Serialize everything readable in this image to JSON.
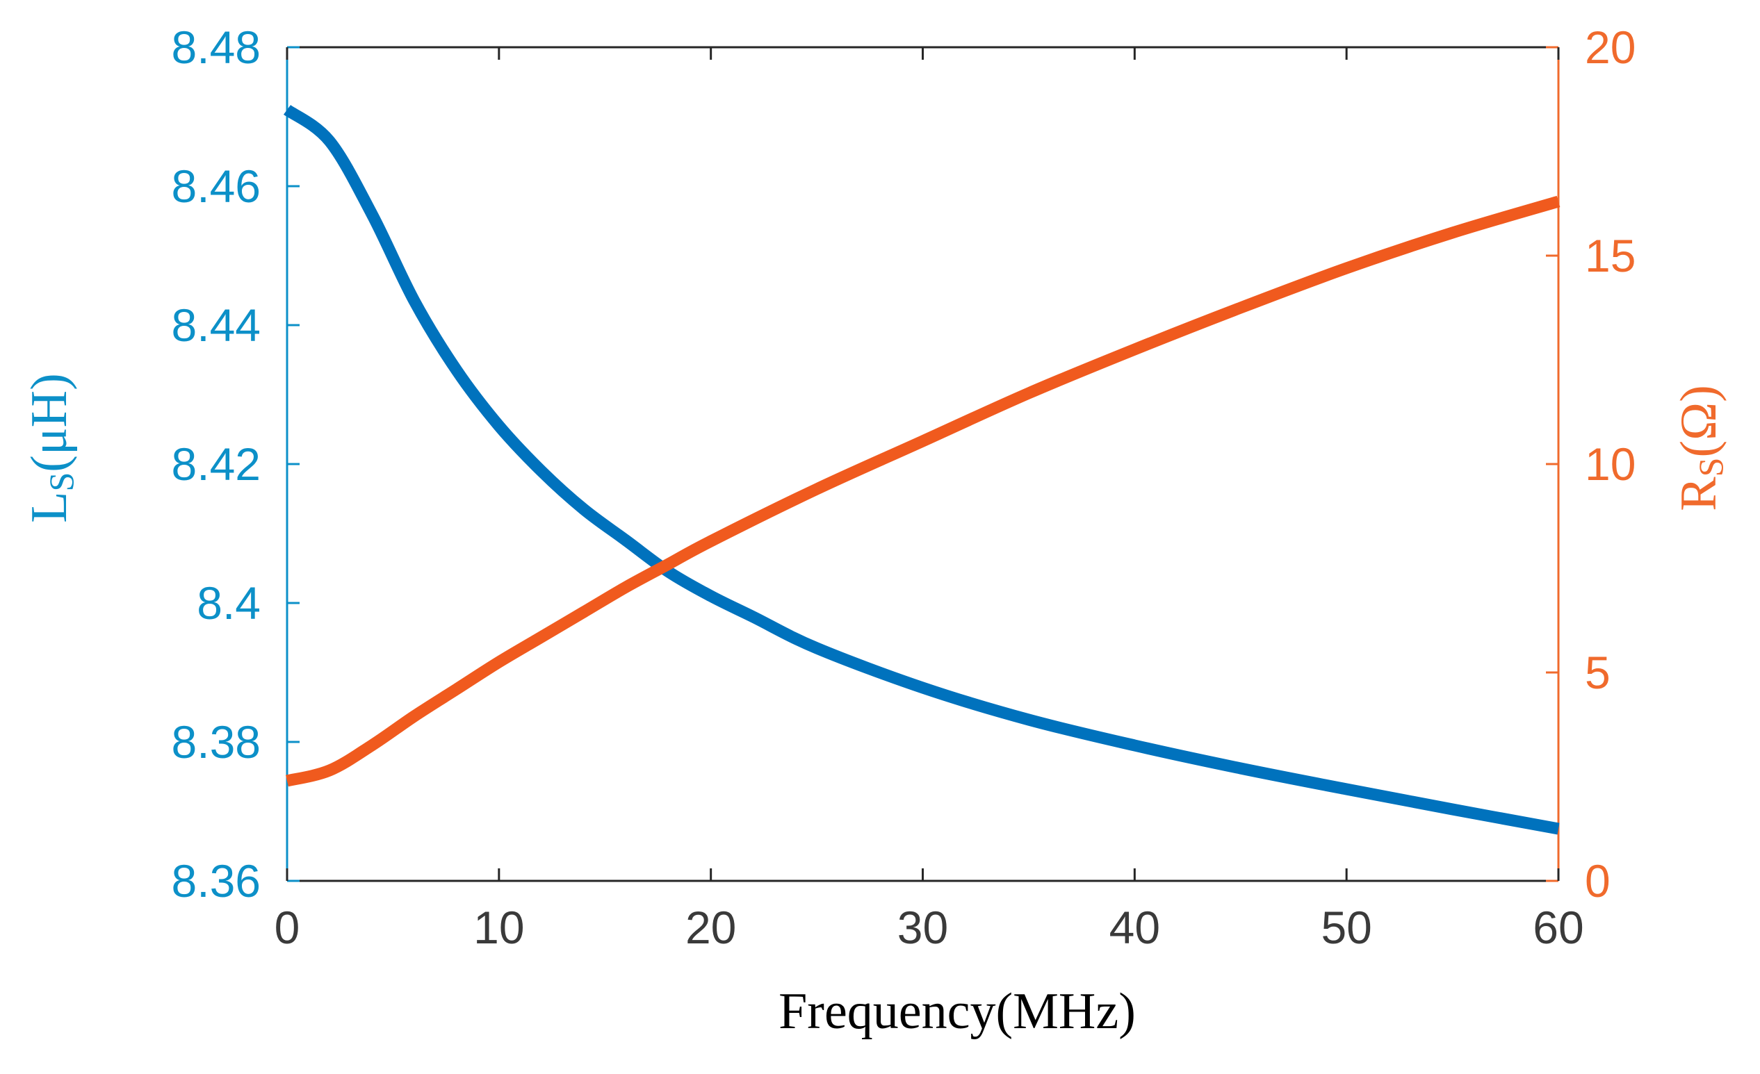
{
  "chart_data": {
    "type": "line",
    "title": "",
    "xlabel": "Frequency(MHz)",
    "xlim": [
      0,
      60
    ],
    "xticks": [
      "0",
      "10",
      "20",
      "30",
      "40",
      "50",
      "60"
    ],
    "grid": false,
    "legend": "none",
    "y_left": {
      "label_main": "L",
      "label_sub": "S",
      "label_unit": "(μH)",
      "lim": [
        8.36,
        8.48
      ],
      "ticks": [
        "8.36",
        "8.38",
        "8.4",
        "8.42",
        "8.44",
        "8.46",
        "8.48"
      ],
      "color": "#0072bd",
      "tick_color": "#0c90c8"
    },
    "y_right": {
      "label_main": "R",
      "label_sub": "S",
      "label_unit": "(Ω)",
      "lim": [
        0,
        20
      ],
      "ticks": [
        "0",
        "5",
        "10",
        "15",
        "20"
      ],
      "color": "#f05a1e",
      "tick_color": "#f06a2c"
    },
    "series": [
      {
        "name": "Ls",
        "axis": "left",
        "x": [
          0,
          2,
          4,
          6,
          8,
          10,
          12,
          14,
          16,
          18,
          20,
          22,
          25,
          30,
          35,
          40,
          45,
          50,
          55,
          60
        ],
        "values": [
          8.471,
          8.4665,
          8.456,
          8.4435,
          8.4335,
          8.4255,
          8.419,
          8.4135,
          8.409,
          8.4045,
          8.401,
          8.398,
          8.3935,
          8.3878,
          8.3832,
          8.3795,
          8.3762,
          8.3732,
          8.3703,
          8.3675
        ]
      },
      {
        "name": "Rs",
        "axis": "right",
        "x": [
          0,
          2,
          4,
          6,
          8,
          10,
          12,
          14,
          16,
          18,
          20,
          25,
          30,
          35,
          40,
          45,
          50,
          55,
          60
        ],
        "values": [
          2.4,
          2.65,
          3.25,
          3.95,
          4.6,
          5.25,
          5.85,
          6.45,
          7.05,
          7.6,
          8.15,
          9.4,
          10.55,
          11.7,
          12.75,
          13.75,
          14.7,
          15.55,
          16.3
        ]
      }
    ]
  }
}
